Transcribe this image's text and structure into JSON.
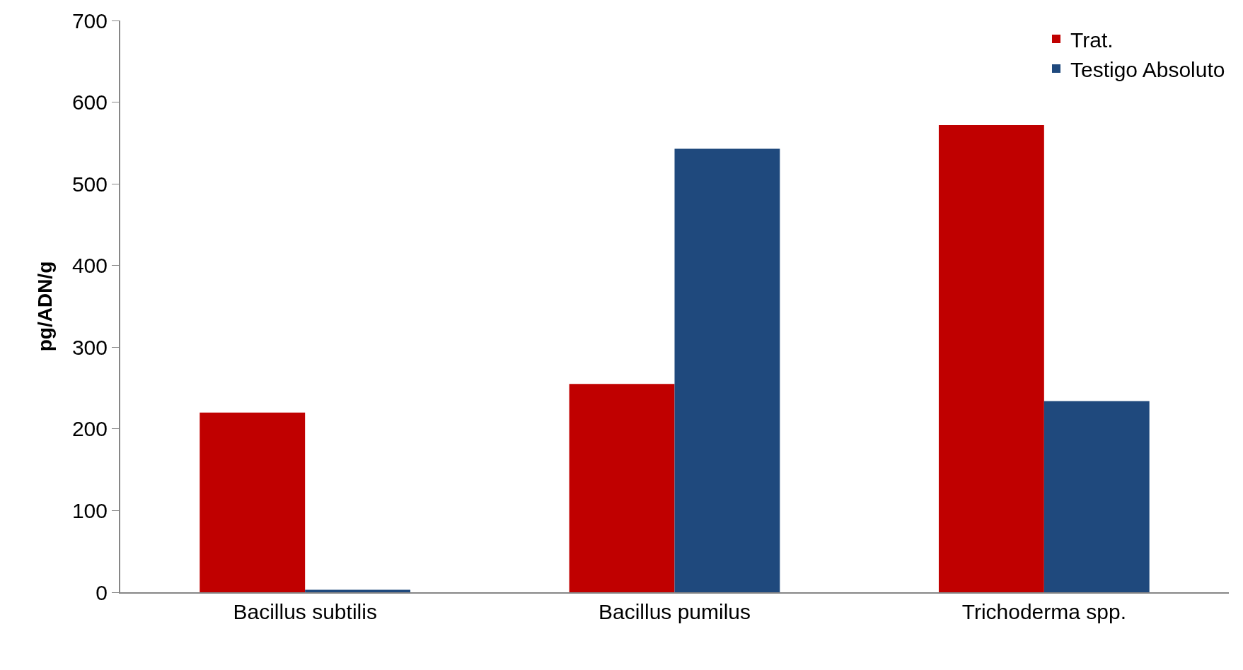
{
  "chart_data": {
    "type": "bar",
    "ylabel": "pg/ADN/g",
    "categories": [
      "Bacillus subtilis",
      "Bacillus pumilus",
      "Trichoderma spp."
    ],
    "series": [
      {
        "name": "Trat.",
        "color": "#c00000",
        "values": [
          220,
          255,
          572
        ]
      },
      {
        "name": "Testigo Absoluto",
        "color": "#1f497d",
        "values": [
          3,
          543,
          234
        ]
      }
    ],
    "ylim": [
      0,
      700
    ],
    "yticks": [
      0,
      100,
      200,
      300,
      400,
      500,
      600,
      700
    ],
    "grid": false,
    "legend": "top right"
  }
}
